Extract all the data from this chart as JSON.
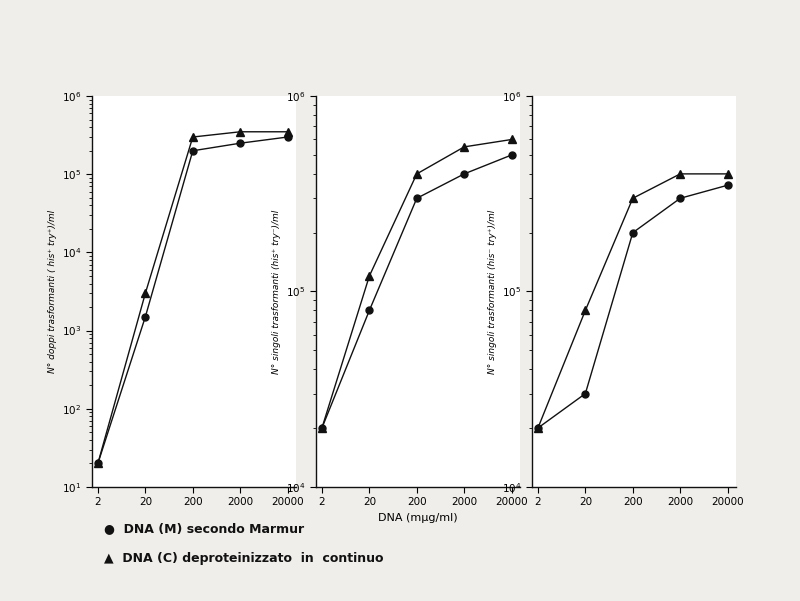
{
  "x": [
    2,
    20,
    200,
    2000,
    20000
  ],
  "plots": [
    {
      "ylabel": "N° doppi trasformanti ( his⁺ try⁺)/ml",
      "xlabel": "",
      "M": [
        20.0,
        1500.0,
        200000.0,
        250000.0,
        300000.0
      ],
      "C": [
        20.0,
        3000.0,
        300000.0,
        350000.0,
        350000.0
      ],
      "ylim": [
        10,
        1000000.0
      ],
      "yticks": [
        10,
        100,
        1000,
        10000,
        100000,
        1000000
      ]
    },
    {
      "ylabel": "N° singoli trasformanti (his⁺ try⁻)/ml",
      "xlabel": "DNA (mμg/ml)",
      "M": [
        20000.0,
        80000.0,
        300000.0,
        400000.0,
        500000.0
      ],
      "C": [
        20000.0,
        120000.0,
        400000.0,
        550000.0,
        600000.0
      ],
      "ylim": [
        10000.0,
        1000000.0
      ],
      "yticks": [
        10000,
        100000,
        1000000
      ]
    },
    {
      "ylabel": "N° singoli trasformanti (his⁻ try⁺)/ml",
      "xlabel": "",
      "M": [
        20000.0,
        30000.0,
        200000.0,
        300000.0,
        350000.0
      ],
      "C": [
        20000.0,
        80000.0,
        300000.0,
        400000.0,
        400000.0
      ],
      "ylim": [
        10000.0,
        1000000.0
      ],
      "yticks": [
        10000,
        100000,
        1000000
      ]
    }
  ],
  "bg_color": "#f0eeea",
  "plot_bg": "#ffffff",
  "line_color": "#111111",
  "marker_size": 5,
  "legend_marker": [
    "●",
    "▲"
  ],
  "legend_labels": [
    "DNA (M) secondo Marmur",
    "DNA (C) deproteinizzato  in  continuo"
  ]
}
